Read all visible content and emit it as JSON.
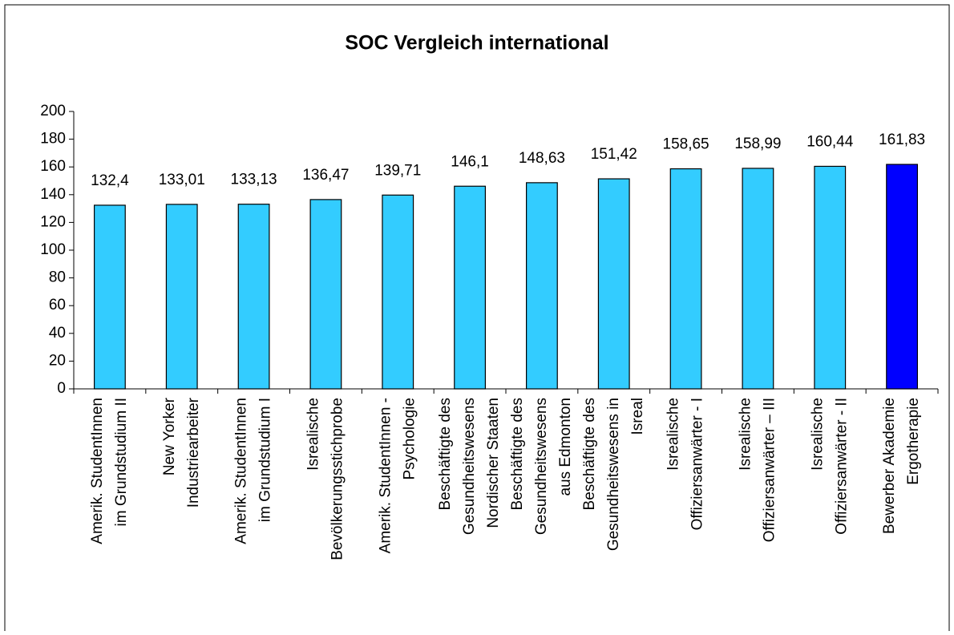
{
  "chart_data": {
    "type": "bar",
    "title": "SOC Vergleich international",
    "categories": [
      [
        "Amerik. StudentInnen",
        "im Grundstudium II"
      ],
      [
        "New Yorker",
        "Industriearbeiter"
      ],
      [
        "Amerik. StudentInnen",
        "im Grundstudium I"
      ],
      [
        "Isrealische",
        "Bevölkerungsstichprobe"
      ],
      [
        "Amerik. StudentInnen -",
        "Psychologie"
      ],
      [
        "Beschäftigte des",
        "Gesundheitswesens",
        "Nordischer Staaten"
      ],
      [
        "Beschäftigte des",
        "Gesundheitswesens",
        "aus Edmonton"
      ],
      [
        "Beschäftigte des",
        "Gesundheitswesens in",
        "Isreal"
      ],
      [
        "Isrealische",
        "Offiziersanwärter - I"
      ],
      [
        "Isrealische",
        "Offiziersanwärter – III"
      ],
      [
        "Isrealische",
        "Offiziersanwärter - II"
      ],
      [
        "Bewerber Akademie",
        "Ergotherapie"
      ]
    ],
    "values": [
      132.4,
      133.01,
      133.13,
      136.47,
      139.71,
      146.1,
      148.63,
      151.42,
      158.65,
      158.99,
      160.44,
      161.83
    ],
    "value_labels": [
      "132,4",
      "133,01",
      "133,13",
      "136,47",
      "139,71",
      "146,1",
      "148,63",
      "151,42",
      "158,65",
      "158,99",
      "160,44",
      "161,83"
    ],
    "colors": [
      "#33ccff",
      "#33ccff",
      "#33ccff",
      "#33ccff",
      "#33ccff",
      "#33ccff",
      "#33ccff",
      "#33ccff",
      "#33ccff",
      "#33ccff",
      "#33ccff",
      "#0000ff"
    ],
    "ylim": [
      0,
      200
    ],
    "yticks": [
      0,
      20,
      40,
      60,
      80,
      100,
      120,
      140,
      160,
      180,
      200
    ],
    "grid": false
  }
}
